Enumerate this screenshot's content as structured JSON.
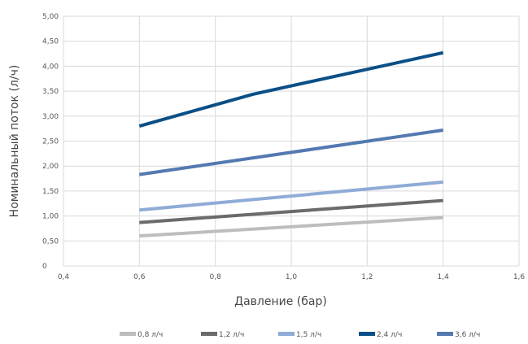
{
  "chart_data": {
    "type": "line",
    "xlabel": "Давление (бар)",
    "ylabel": "Номинальный поток (л/ч)",
    "xlim": [
      0.4,
      1.6
    ],
    "ylim": [
      0,
      5.0
    ],
    "x_ticks": [
      "0,4",
      "0,6",
      "0,8",
      "1,0",
      "1,2",
      "1,4",
      "1,6"
    ],
    "x_tick_values": [
      0.4,
      0.6,
      0.8,
      1.0,
      1.2,
      1.4,
      1.6
    ],
    "y_ticks": [
      "0",
      "0,50",
      "1,00",
      "1,50",
      "2,00",
      "2,50",
      "3,00",
      "3,50",
      "4,00",
      "4,50",
      "5,00"
    ],
    "y_tick_values": [
      0,
      0.5,
      1.0,
      1.5,
      2.0,
      2.5,
      3.0,
      3.5,
      4.0,
      4.5,
      5.0
    ],
    "grid": true,
    "legend_position": "bottom",
    "series": [
      {
        "name": "0,8 л/ч",
        "color": "#bdbdbd",
        "x": [
          0.6,
          1.4
        ],
        "y": [
          0.6,
          0.97
        ]
      },
      {
        "name": "1,2 л/ч",
        "color": "#6b6b6b",
        "x": [
          0.6,
          1.4
        ],
        "y": [
          0.87,
          1.31
        ]
      },
      {
        "name": "1,5 л/ч",
        "color": "#8fabd6",
        "x": [
          0.6,
          1.4
        ],
        "y": [
          1.12,
          1.68
        ]
      },
      {
        "name": "2,4 л/ч",
        "color": "#0b4f86",
        "x": [
          0.6,
          0.9,
          1.4
        ],
        "y": [
          2.8,
          3.44,
          4.27
        ]
      },
      {
        "name": "3,6 л/ч",
        "color": "#5379b1",
        "x": [
          0.6,
          1.4
        ],
        "y": [
          1.83,
          2.72
        ]
      }
    ]
  }
}
